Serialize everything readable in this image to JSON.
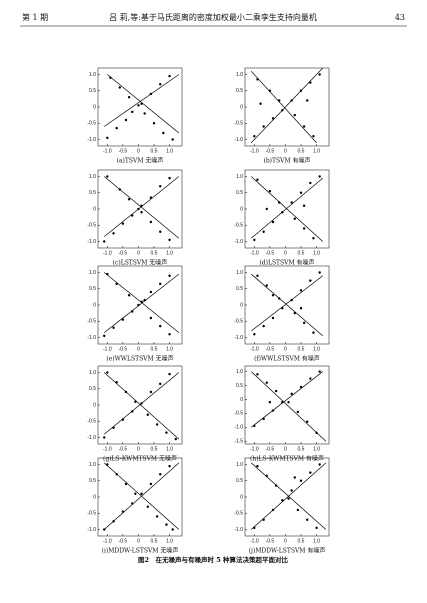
{
  "header": {
    "issue": "第 1 期",
    "title": "吕 莉,等:基于马氏距离的密度加权最小二乘孪生支持向量机",
    "page": "43"
  },
  "figure_caption": "图2　在无噪声与有噪声时 5 种算法决策超平面对比",
  "chart_data": [
    {
      "type": "scatter",
      "caption": "(a)TSVM 无噪声",
      "xlim": [
        -1.3,
        1.4
      ],
      "ylim": [
        -1.2,
        1.2
      ],
      "xticks": [
        {
          "value": -1,
          "label": "-1.0"
        },
        {
          "value": -0.5,
          "label": "-0.5"
        },
        0,
        {
          "value": 0.5,
          "label": "0.5"
        },
        {
          "value": 1,
          "label": "1.0"
        }
      ],
      "yticks": [
        {
          "value": -1,
          "label": "-1.0"
        },
        {
          "value": -0.5,
          "label": "-0.5"
        },
        0,
        {
          "value": 0.5,
          "label": "0.5"
        },
        {
          "value": 1,
          "label": "1.0"
        }
      ],
      "series": [
        {
          "type": "points",
          "x": [
            -1.0,
            -0.7,
            -0.4,
            -0.2,
            0.1,
            0.4,
            0.7,
            1.0,
            -0.9,
            -0.6,
            -0.3,
            0.2,
            0.5,
            0.8,
            1.1,
            0.0
          ],
          "y": [
            -0.95,
            -0.65,
            -0.4,
            -0.15,
            0.1,
            0.4,
            0.7,
            0.95,
            0.9,
            0.6,
            0.3,
            -0.2,
            -0.5,
            -0.8,
            -1.0,
            0.05
          ]
        },
        {
          "type": "line",
          "x": [
            -1.1,
            1.3
          ],
          "y": [
            -0.6,
            1.0
          ]
        },
        {
          "type": "line",
          "x": [
            -1.0,
            1.3
          ],
          "y": [
            1.0,
            -0.8
          ]
        }
      ]
    },
    {
      "type": "scatter",
      "caption": "(b)TSVM 有噪声",
      "xlim": [
        -1.3,
        1.4
      ],
      "ylim": [
        -1.2,
        1.2
      ],
      "xticks": [
        {
          "value": -1,
          "label": "-1.0"
        },
        {
          "value": -0.5,
          "label": "-0.5"
        },
        0,
        {
          "value": 0.5,
          "label": "0.5"
        },
        {
          "value": 1,
          "label": "1.0"
        }
      ],
      "yticks": [
        {
          "value": -1,
          "label": "-1.0"
        },
        {
          "value": -0.5,
          "label": "-0.5"
        },
        0,
        {
          "value": 0.5,
          "label": "0.5"
        },
        {
          "value": 1,
          "label": "1.0"
        }
      ],
      "series": [
        {
          "type": "points",
          "x": [
            -1.0,
            -0.7,
            -0.4,
            -0.1,
            0.2,
            0.5,
            0.8,
            1.1,
            -0.9,
            -0.5,
            -0.2,
            0.3,
            0.6,
            0.9,
            -0.8,
            0.7
          ],
          "y": [
            -0.9,
            -0.6,
            -0.35,
            -0.1,
            0.2,
            0.5,
            0.75,
            1.0,
            0.85,
            0.5,
            0.2,
            -0.25,
            -0.6,
            -0.9,
            0.1,
            0.2
          ]
        },
        {
          "type": "line",
          "x": [
            -1.1,
            1.2
          ],
          "y": [
            -1.1,
            1.2
          ]
        },
        {
          "type": "line",
          "x": [
            -1.1,
            1.0
          ],
          "y": [
            1.1,
            -1.1
          ]
        }
      ]
    },
    {
      "type": "scatter",
      "caption": "(c)LSTSVM 无噪声",
      "xlim": [
        -1.3,
        1.4
      ],
      "ylim": [
        -1.2,
        1.2
      ],
      "xticks": [
        {
          "value": -1,
          "label": "-1.0"
        },
        {
          "value": -0.5,
          "label": "-0.5"
        },
        0,
        {
          "value": 0.5,
          "label": "0.5"
        },
        {
          "value": 1,
          "label": "1.0"
        }
      ],
      "yticks": [
        {
          "value": -1,
          "label": "-1.0"
        },
        {
          "value": -0.5,
          "label": "-0.5"
        },
        0,
        {
          "value": 0.5,
          "label": "0.5"
        },
        {
          "value": 1,
          "label": "1.0"
        }
      ],
      "series": [
        {
          "type": "points",
          "x": [
            -1.1,
            -0.8,
            -0.5,
            -0.2,
            0.1,
            0.4,
            0.7,
            1.0,
            -1.0,
            -0.6,
            -0.3,
            0.1,
            0.4,
            0.7,
            1.0,
            0.0
          ],
          "y": [
            -1.0,
            -0.75,
            -0.45,
            -0.2,
            0.1,
            0.35,
            0.7,
            0.95,
            1.0,
            0.6,
            0.3,
            -0.1,
            -0.4,
            -0.7,
            -0.95,
            0.0
          ]
        },
        {
          "type": "line",
          "x": [
            -1.1,
            1.3
          ],
          "y": [
            -0.85,
            1.0
          ]
        },
        {
          "type": "line",
          "x": [
            -1.1,
            1.3
          ],
          "y": [
            1.0,
            -0.9
          ]
        }
      ]
    },
    {
      "type": "scatter",
      "caption": "(d)LSTSVM 有噪声",
      "xlim": [
        -1.3,
        1.4
      ],
      "ylim": [
        -1.2,
        1.2
      ],
      "xticks": [
        {
          "value": -1,
          "label": "-1.0"
        },
        {
          "value": -0.5,
          "label": "-0.5"
        },
        0,
        {
          "value": 0.5,
          "label": "0.5"
        },
        {
          "value": 1,
          "label": "1.0"
        }
      ],
      "yticks": [
        {
          "value": -1,
          "label": "-1.0"
        },
        {
          "value": -0.5,
          "label": "-0.5"
        },
        0,
        {
          "value": 0.5,
          "label": "0.5"
        },
        {
          "value": 1,
          "label": "1.0"
        }
      ],
      "series": [
        {
          "type": "points",
          "x": [
            -1.0,
            -0.7,
            -0.4,
            -0.1,
            0.2,
            0.5,
            0.8,
            1.1,
            -0.9,
            -0.5,
            -0.2,
            0.3,
            0.6,
            0.9,
            -0.6,
            0.6
          ],
          "y": [
            -0.95,
            -0.7,
            -0.4,
            -0.1,
            0.2,
            0.5,
            0.8,
            1.0,
            0.9,
            0.55,
            0.2,
            -0.3,
            -0.6,
            -0.9,
            0.0,
            0.1
          ]
        },
        {
          "type": "line",
          "x": [
            -1.1,
            1.2
          ],
          "y": [
            -0.9,
            0.95
          ]
        },
        {
          "type": "line",
          "x": [
            -1.1,
            1.2
          ],
          "y": [
            1.0,
            -1.0
          ]
        }
      ]
    },
    {
      "type": "scatter",
      "caption": "(e)WWLSTSVM 无噪声",
      "xlim": [
        -1.3,
        1.4
      ],
      "ylim": [
        -1.2,
        1.2
      ],
      "xticks": [
        {
          "value": -1,
          "label": "-1.0"
        },
        {
          "value": -0.5,
          "label": "-0.5"
        },
        0,
        {
          "value": 0.5,
          "label": "0.5"
        },
        {
          "value": 1,
          "label": "1.0"
        }
      ],
      "yticks": [
        {
          "value": -1,
          "label": "-1.0"
        },
        {
          "value": -0.5,
          "label": "-0.5"
        },
        0,
        {
          "value": 0.5,
          "label": "0.5"
        },
        {
          "value": 1,
          "label": "1.0"
        }
      ],
      "series": [
        {
          "type": "points",
          "x": [
            -1.1,
            -0.8,
            -0.5,
            -0.2,
            0.1,
            0.4,
            0.7,
            1.0,
            -1.0,
            -0.7,
            -0.3,
            0.0,
            0.4,
            0.7,
            1.0,
            0.2
          ],
          "y": [
            -0.95,
            -0.7,
            -0.45,
            -0.2,
            0.1,
            0.4,
            0.65,
            0.9,
            0.95,
            0.65,
            0.3,
            0.0,
            -0.4,
            -0.65,
            -0.9,
            0.15
          ]
        },
        {
          "type": "line",
          "x": [
            -1.1,
            1.3
          ],
          "y": [
            -0.85,
            0.95
          ]
        },
        {
          "type": "line",
          "x": [
            -1.1,
            1.3
          ],
          "y": [
            1.0,
            -0.85
          ]
        }
      ]
    },
    {
      "type": "scatter",
      "caption": "(f)WWLSTSVM 有噪声",
      "xlim": [
        -1.3,
        1.4
      ],
      "ylim": [
        -1.2,
        1.2
      ],
      "xticks": [
        {
          "value": -1,
          "label": "-1.0"
        },
        {
          "value": -0.5,
          "label": "-0.5"
        },
        0,
        {
          "value": 0.5,
          "label": "0.5"
        },
        {
          "value": 1,
          "label": "1.0"
        }
      ],
      "yticks": [
        {
          "value": -1,
          "label": "-1.0"
        },
        {
          "value": -0.5,
          "label": "-0.5"
        },
        0,
        {
          "value": 0.5,
          "label": "0.5"
        },
        {
          "value": 1,
          "label": "1.0"
        }
      ],
      "series": [
        {
          "type": "points",
          "x": [
            -1.0,
            -0.7,
            -0.4,
            -0.1,
            0.2,
            0.5,
            0.8,
            1.1,
            -0.9,
            -0.6,
            -0.2,
            0.3,
            0.6,
            0.9,
            -0.4,
            0.5
          ],
          "y": [
            -0.9,
            -0.65,
            -0.4,
            -0.1,
            0.15,
            0.45,
            0.75,
            1.0,
            0.9,
            0.6,
            0.2,
            -0.25,
            -0.55,
            -0.85,
            0.3,
            -0.1
          ]
        },
        {
          "type": "line",
          "x": [
            -1.1,
            1.2
          ],
          "y": [
            -0.8,
            0.9
          ]
        },
        {
          "type": "line",
          "x": [
            -1.1,
            1.2
          ],
          "y": [
            0.95,
            -0.95
          ]
        }
      ]
    },
    {
      "type": "scatter",
      "caption": "(g)LS-KWMTSVM 无噪声",
      "xlim": [
        -1.3,
        1.4
      ],
      "ylim": [
        -1.2,
        1.2
      ],
      "xticks": [
        {
          "value": -1,
          "label": "-1.0"
        },
        {
          "value": -0.5,
          "label": "-0.5"
        },
        0,
        {
          "value": 0.5,
          "label": "0.5"
        },
        {
          "value": 1,
          "label": "1.0"
        }
      ],
      "yticks": [
        {
          "value": -1,
          "label": "-1.0"
        },
        {
          "value": -0.5,
          "label": "-0.5"
        },
        0,
        {
          "value": 0.5,
          "label": "0.5"
        },
        {
          "value": 1,
          "label": "1.0"
        }
      ],
      "series": [
        {
          "type": "points",
          "x": [
            -1.1,
            -0.8,
            -0.5,
            -0.2,
            0.1,
            0.4,
            0.7,
            1.0,
            -1.0,
            -0.7,
            -0.4,
            -0.1,
            0.3,
            0.6,
            0.9,
            1.2
          ],
          "y": [
            -1.0,
            -0.7,
            -0.45,
            -0.2,
            0.05,
            0.4,
            0.65,
            0.95,
            1.0,
            0.7,
            0.4,
            0.1,
            -0.3,
            -0.6,
            -0.85,
            -1.05
          ]
        },
        {
          "type": "line",
          "x": [
            -1.1,
            1.3
          ],
          "y": [
            -0.9,
            1.0
          ]
        },
        {
          "type": "line",
          "x": [
            -1.1,
            1.3
          ],
          "y": [
            1.0,
            -1.05
          ]
        }
      ]
    },
    {
      "type": "scatter",
      "caption": "(h)LS-KWMTSVM 有噪声",
      "xlim": [
        -1.3,
        1.4
      ],
      "ylim": [
        -1.6,
        1.2
      ],
      "xticks": [
        {
          "value": -1,
          "label": "-1.0"
        },
        {
          "value": -0.5,
          "label": "-0.5"
        },
        0,
        {
          "value": 0.5,
          "label": "0.5"
        },
        {
          "value": 1,
          "label": "1.0"
        }
      ],
      "yticks": [
        {
          "value": -1.5,
          "label": "-1.5"
        },
        {
          "value": -1,
          "label": "-1.0"
        },
        {
          "value": -0.5,
          "label": "-0.5"
        },
        0,
        {
          "value": 0.5,
          "label": "0.5"
        },
        {
          "value": 1,
          "label": "1.0"
        }
      ],
      "series": [
        {
          "type": "points",
          "x": [
            -1.0,
            -0.7,
            -0.4,
            -0.1,
            0.2,
            0.5,
            0.8,
            1.1,
            -0.9,
            -0.6,
            -0.3,
            0.1,
            0.4,
            0.7,
            1.0,
            -0.5
          ],
          "y": [
            -0.95,
            -0.7,
            -0.4,
            -0.1,
            0.2,
            0.45,
            0.75,
            1.0,
            0.9,
            0.6,
            0.3,
            -0.1,
            -0.45,
            -0.8,
            -1.2,
            -0.1
          ]
        },
        {
          "type": "line",
          "x": [
            -1.1,
            1.2
          ],
          "y": [
            -1.0,
            1.0
          ]
        },
        {
          "type": "line",
          "x": [
            -1.1,
            1.3
          ],
          "y": [
            1.0,
            -1.5
          ]
        }
      ]
    },
    {
      "type": "scatter",
      "caption": "(i)MDDW-LSTSVM 无噪声",
      "xlim": [
        -1.3,
        1.4
      ],
      "ylim": [
        -1.2,
        1.2
      ],
      "xticks": [
        {
          "value": -1,
          "label": "-1.0"
        },
        {
          "value": -0.5,
          "label": "-0.5"
        },
        0,
        {
          "value": 0.5,
          "label": "0.5"
        },
        {
          "value": 1,
          "label": "1.0"
        }
      ],
      "yticks": [
        {
          "value": -1,
          "label": "-1.0"
        },
        {
          "value": -0.5,
          "label": "-0.5"
        },
        0,
        {
          "value": 0.5,
          "label": "0.5"
        },
        {
          "value": 1,
          "label": "1.0"
        }
      ],
      "series": [
        {
          "type": "points",
          "x": [
            -1.1,
            -0.8,
            -0.5,
            -0.2,
            0.1,
            0.4,
            0.7,
            1.0,
            -1.0,
            -0.7,
            -0.4,
            -0.1,
            0.3,
            0.6,
            0.9,
            1.1
          ],
          "y": [
            -1.0,
            -0.75,
            -0.45,
            -0.2,
            0.1,
            0.4,
            0.7,
            0.95,
            1.0,
            0.7,
            0.4,
            0.1,
            -0.3,
            -0.6,
            -0.85,
            -1.0
          ]
        },
        {
          "type": "line",
          "x": [
            -1.1,
            1.3
          ],
          "y": [
            -1.0,
            1.05
          ]
        },
        {
          "type": "line",
          "x": [
            -1.1,
            1.3
          ],
          "y": [
            1.05,
            -1.0
          ]
        }
      ]
    },
    {
      "type": "scatter",
      "caption": "(j)MDDW-LSTSVM 有噪声",
      "xlim": [
        -1.3,
        1.4
      ],
      "ylim": [
        -1.2,
        1.2
      ],
      "xticks": [
        {
          "value": -1,
          "label": "-1.0"
        },
        {
          "value": -0.5,
          "label": "-0.5"
        },
        0,
        {
          "value": 0.5,
          "label": "0.5"
        },
        {
          "value": 1,
          "label": "1.0"
        }
      ],
      "yticks": [
        {
          "value": -1,
          "label": "-1.0"
        },
        {
          "value": -0.5,
          "label": "-0.5"
        },
        0,
        {
          "value": 0.5,
          "label": "0.5"
        },
        {
          "value": 1,
          "label": "1.0"
        }
      ],
      "series": [
        {
          "type": "points",
          "x": [
            -1.0,
            -0.7,
            -0.4,
            -0.1,
            0.2,
            0.5,
            0.8,
            1.1,
            -0.9,
            -0.6,
            -0.3,
            0.1,
            0.4,
            0.7,
            1.0,
            0.3
          ],
          "y": [
            -0.95,
            -0.7,
            -0.4,
            -0.1,
            0.2,
            0.5,
            0.75,
            1.0,
            0.95,
            0.65,
            0.35,
            -0.05,
            -0.4,
            -0.7,
            -0.95,
            0.6
          ]
        },
        {
          "type": "line",
          "x": [
            -1.1,
            1.3
          ],
          "y": [
            -1.0,
            1.05
          ]
        },
        {
          "type": "line",
          "x": [
            -1.1,
            1.3
          ],
          "y": [
            1.05,
            -1.0
          ]
        }
      ]
    }
  ]
}
